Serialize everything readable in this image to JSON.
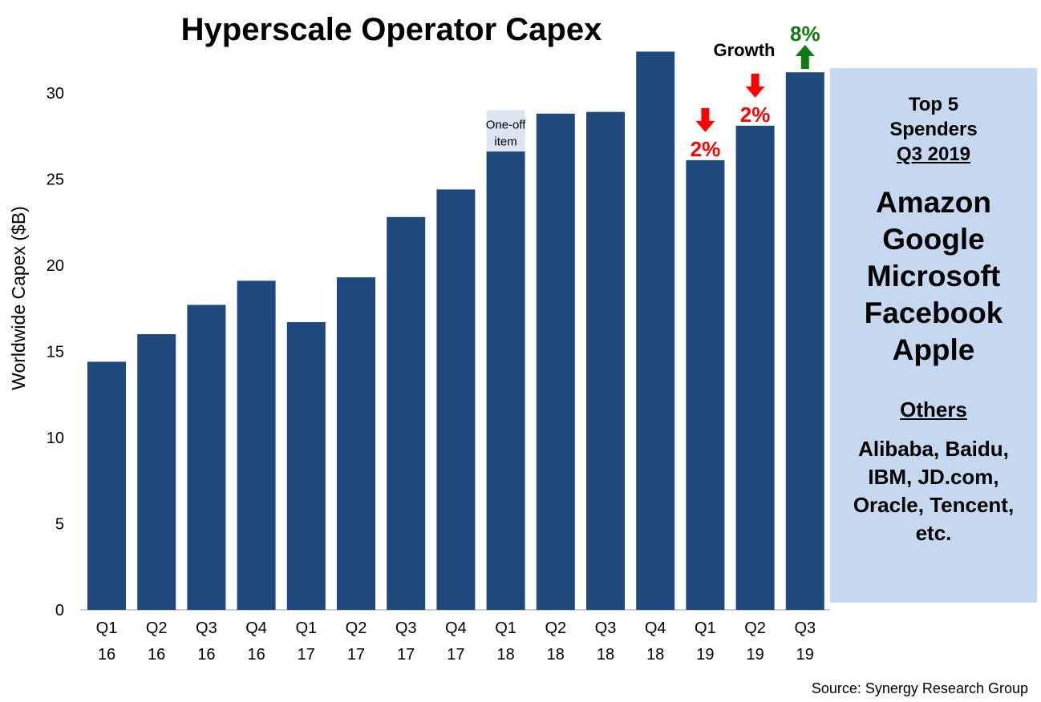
{
  "chart_data": {
    "type": "bar",
    "title": "Hyperscale Operator Capex",
    "ylabel": "Worldwide Capex ($B)",
    "xlabel": "",
    "ylim": [
      0,
      32.5
    ],
    "yticks": [
      0,
      5,
      10,
      15,
      20,
      25,
      30
    ],
    "grid": false,
    "categories": [
      [
        "Q1",
        "16"
      ],
      [
        "Q2",
        "16"
      ],
      [
        "Q3",
        "16"
      ],
      [
        "Q4",
        "16"
      ],
      [
        "Q1",
        "17"
      ],
      [
        "Q2",
        "17"
      ],
      [
        "Q3",
        "17"
      ],
      [
        "Q4",
        "17"
      ],
      [
        "Q1",
        "18"
      ],
      [
        "Q2",
        "18"
      ],
      [
        "Q3",
        "18"
      ],
      [
        "Q4",
        "18"
      ],
      [
        "Q1",
        "19"
      ],
      [
        "Q2",
        "19"
      ],
      [
        "Q3",
        "19"
      ]
    ],
    "values": [
      14.4,
      16.0,
      17.7,
      19.1,
      16.7,
      19.3,
      22.8,
      24.4,
      26.6,
      28.8,
      28.9,
      32.4,
      26.1,
      28.1,
      31.2
    ],
    "one_off": {
      "index": 8,
      "total": 29.0,
      "label_lines": [
        "One-off",
        "item"
      ]
    },
    "growth_label": "Growth",
    "growth": [
      {
        "index": 12,
        "text": "2%",
        "direction": "down",
        "color": "#ff0000"
      },
      {
        "index": 13,
        "text": "2%",
        "direction": "down",
        "color": "#ff0000"
      },
      {
        "index": 14,
        "text": "8%",
        "direction": "up",
        "color": "#127a12"
      }
    ],
    "bar_color": "#1f497d",
    "one_off_color": "#dce6f2",
    "source": "Source: Synergy Research Group"
  },
  "panel": {
    "heading": [
      "Top 5",
      "Spenders"
    ],
    "period": "Q3 2019",
    "top5": [
      "Amazon",
      "Google",
      "Microsoft",
      "Facebook",
      "Apple"
    ],
    "others_heading": "Others",
    "others": [
      "Alibaba, Baidu,",
      "IBM, JD.com,",
      "Oracle, Tencent,",
      "etc."
    ]
  }
}
